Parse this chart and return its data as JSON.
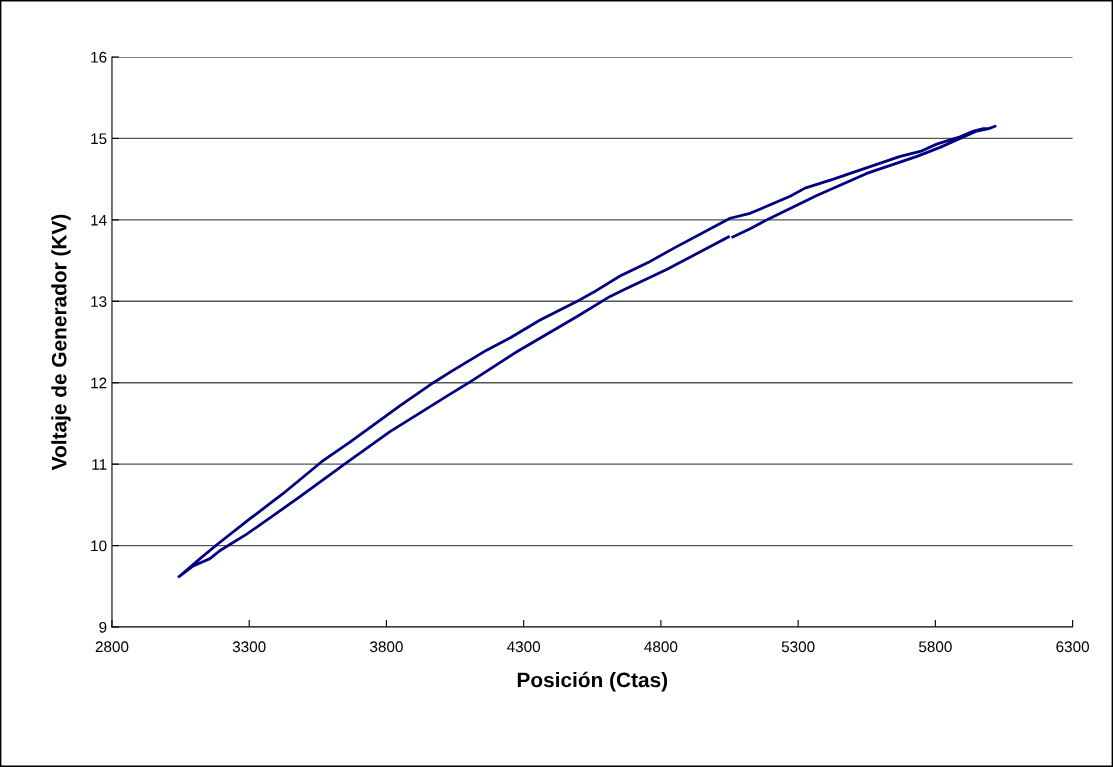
{
  "chart_data": {
    "type": "line",
    "xlabel": "Posición (Ctas)",
    "ylabel": "Voltaje de Generador (KV)",
    "xlim": [
      2800,
      6300
    ],
    "xticks": [
      2800,
      3300,
      3800,
      4300,
      4800,
      5300,
      5800,
      6300
    ],
    "ylim": [
      9,
      16
    ],
    "yticks": [
      9,
      10,
      11,
      12,
      13,
      14,
      15,
      16
    ],
    "grid": "y",
    "marker": "none",
    "line_style": "solid",
    "series": [
      {
        "color": "#000080",
        "x": [
          3045,
          3121,
          3182,
          3303,
          3424,
          3564,
          3667,
          3850,
          3971,
          4032,
          4165,
          4250,
          4360,
          4506,
          4554,
          4651,
          4761,
          4846,
          5052,
          5125,
          5271,
          5325,
          5429,
          5490,
          5672,
          5745,
          5805,
          5890,
          5939,
          5975,
          5994,
          6018,
          5994,
          5951,
          5890,
          5817,
          5733,
          5550,
          5368,
          5198,
          5186,
          5125,
          5062,
          5054,
          5046,
          4821,
          4663,
          4615,
          4493,
          4275,
          4105,
          4032,
          3813,
          3655,
          3485,
          3291,
          3194,
          3157,
          3096,
          3045
        ],
        "values": [
          9.62,
          9.84,
          10.01,
          10.33,
          10.64,
          11.03,
          11.27,
          11.72,
          12.0,
          12.13,
          12.4,
          12.55,
          12.77,
          13.02,
          13.11,
          13.31,
          13.49,
          13.65,
          14.02,
          14.08,
          14.29,
          14.39,
          14.5,
          14.57,
          14.78,
          14.84,
          14.93,
          15.02,
          15.09,
          15.12,
          15.12,
          15.15,
          15.12,
          15.09,
          15.0,
          14.89,
          14.78,
          14.57,
          14.3,
          14.02,
          14.0,
          13.89,
          13.79,
          null,
          13.79,
          13.39,
          13.14,
          13.06,
          12.81,
          12.38,
          12.01,
          11.86,
          11.4,
          11.02,
          10.6,
          10.14,
          9.94,
          9.84,
          9.75,
          9.62
        ]
      }
    ]
  }
}
